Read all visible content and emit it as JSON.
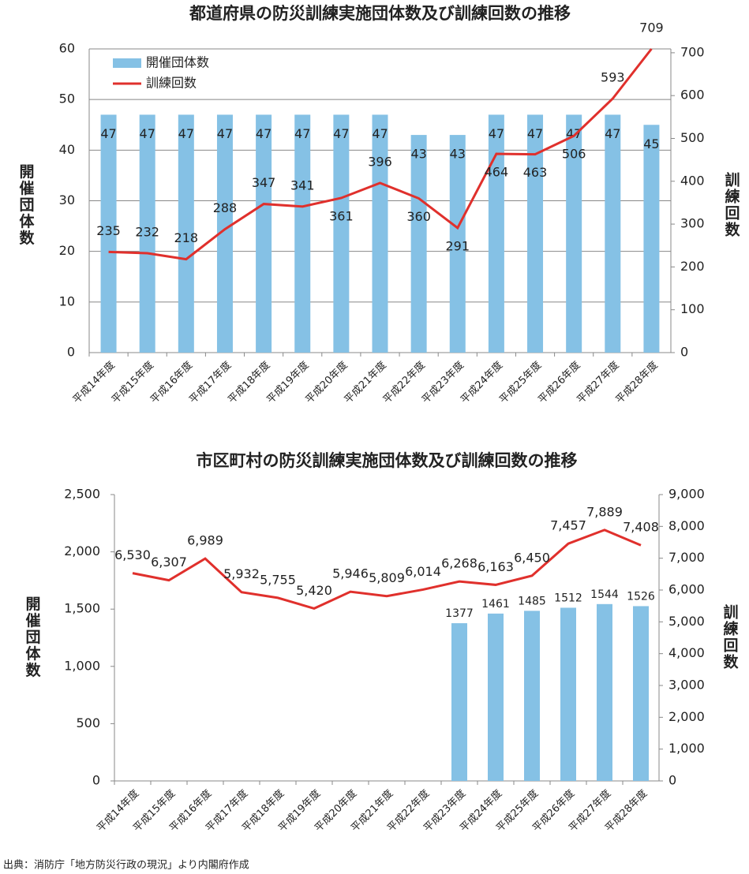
{
  "chart_data": [
    {
      "type": "bar-line",
      "title": "都道府県の防災訓練実施団体数及び訓練回数の推移",
      "y_label": "開催団体数",
      "y2_label": "訓練回数",
      "categories": [
        "平成14年度",
        "平成15年度",
        "平成16年度",
        "平成17年度",
        "平成18年度",
        "平成19年度",
        "平成20年度",
        "平成21年度",
        "平成22年度",
        "平成23年度",
        "平成24年度",
        "平成25年度",
        "平成26年度",
        "平成27年度",
        "平成28年度"
      ],
      "series": [
        {
          "name": "開催団体数",
          "type": "bar",
          "color": "#85c1e5",
          "values": [
            47,
            47,
            47,
            47,
            47,
            47,
            47,
            47,
            43,
            43,
            47,
            47,
            47,
            47,
            45
          ]
        },
        {
          "name": "訓練回数",
          "type": "line",
          "axis": "y2",
          "color": "#e0302c",
          "values": [
            235,
            232,
            218,
            288,
            347,
            341,
            361,
            396,
            360,
            291,
            464,
            463,
            506,
            593,
            709
          ]
        }
      ],
      "ylim": [
        0,
        60
      ],
      "yticks": [
        0,
        10,
        20,
        30,
        40,
        50,
        60
      ],
      "y2lim": [
        0,
        709
      ],
      "y2ticks": [
        0,
        100,
        200,
        300,
        400,
        500,
        600,
        700
      ],
      "grid": true,
      "legend": "upper left"
    },
    {
      "type": "bar-line",
      "title": "市区町村の防災訓練実施団体数及び訓練回数の推移",
      "y_label": "開催団体数",
      "y2_label": "訓練回数",
      "categories": [
        "平成14年度",
        "平成15年度",
        "平成16年度",
        "平成17年度",
        "平成18年度",
        "平成19年度",
        "平成20年度",
        "平成21年度",
        "平成22年度",
        "平成23年度",
        "平成24年度",
        "平成25年度",
        "平成26年度",
        "平成27年度",
        "平成28年度"
      ],
      "series": [
        {
          "name": "開催団体数",
          "type": "bar",
          "color": "#85c1e5",
          "values": [
            null,
            null,
            null,
            null,
            null,
            null,
            null,
            null,
            null,
            1377,
            1461,
            1485,
            1512,
            1544,
            1526
          ]
        },
        {
          "name": "訓練回数",
          "type": "line",
          "axis": "y2",
          "color": "#e0302c",
          "values": [
            6530,
            6307,
            6989,
            5932,
            5755,
            5420,
            5946,
            5809,
            6014,
            6268,
            6163,
            6450,
            7457,
            7889,
            7408
          ],
          "value_labels": [
            "6,530",
            "6,307",
            "6,989",
            "5,932",
            "5,755",
            "5,420",
            "5,946",
            "5,809",
            "6,014",
            "6,268",
            "6,163",
            "6,450",
            "7,457",
            "7,889",
            "7,408"
          ]
        }
      ],
      "ylim": [
        0,
        2500
      ],
      "yticks": [
        0,
        500,
        {
          "value": 1000,
          "label": "1,000"
        },
        {
          "value": 1500,
          "label": "1,500"
        },
        {
          "value": 2000,
          "label": "2,000"
        },
        {
          "value": 2500,
          "label": "2,500"
        }
      ],
      "y2lim": [
        0,
        9000
      ],
      "y2ticks": [
        0,
        {
          "value": 1000,
          "label": "1,000"
        },
        {
          "value": 2000,
          "label": "2,000"
        },
        {
          "value": 3000,
          "label": "3,000"
        },
        {
          "value": 4000,
          "label": "4,000"
        },
        {
          "value": 5000,
          "label": "5,000"
        },
        {
          "value": 6000,
          "label": "6,000"
        },
        {
          "value": 7000,
          "label": "7,000"
        },
        {
          "value": 8000,
          "label": "8,000"
        },
        {
          "value": 9000,
          "label": "9,000"
        }
      ],
      "grid": false,
      "legend": "none"
    }
  ],
  "source": "出典：消防庁「地方防災行政の現況」より内閣府作成"
}
